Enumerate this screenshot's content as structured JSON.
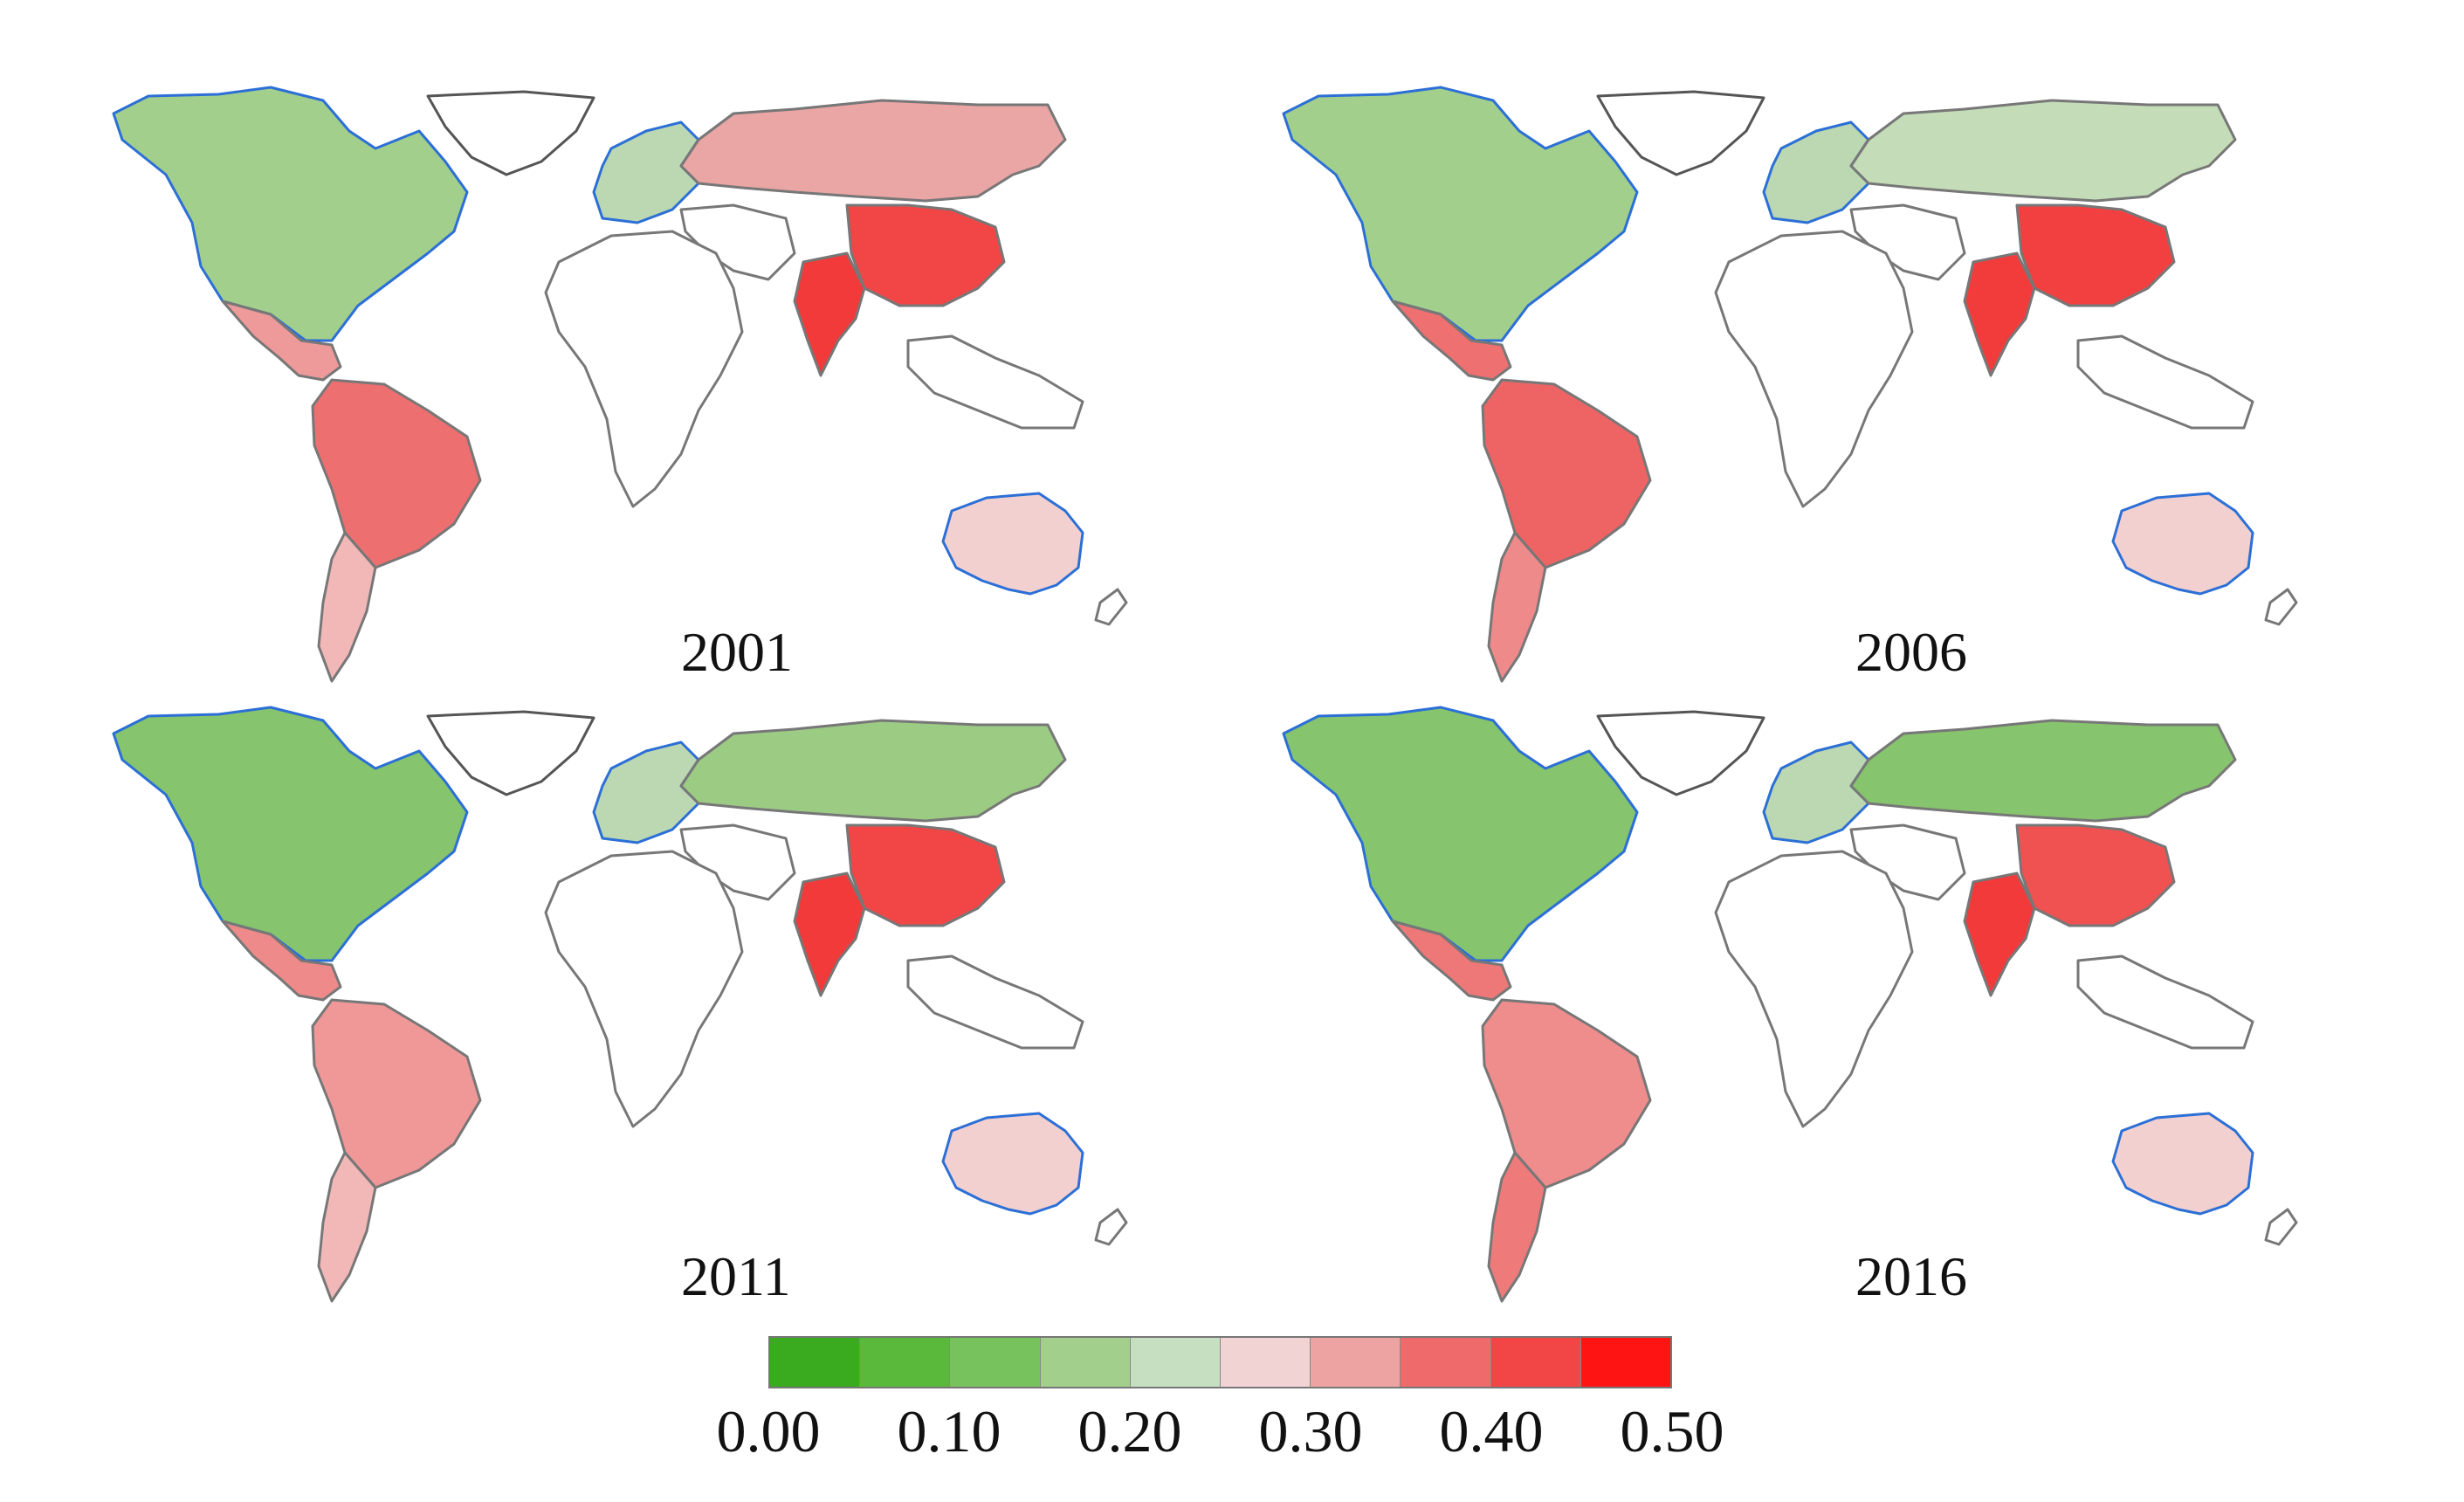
{
  "panels": [
    {
      "year": "2001",
      "fills": {
        "north_america": "#a3cf8c",
        "greenland": "#ffffff",
        "central_america": "#ef9a9a",
        "south_america": "#ee6f6f",
        "south_cone": "#f2b8b8",
        "europe": "#bcd8b2",
        "russia": "#eaa5a5",
        "china": "#f24646",
        "india": "#f23a3a",
        "australia": "#f2d0d0",
        "africa": "#ffffff",
        "middle_east": "#ffffff"
      }
    },
    {
      "year": "2006",
      "fills": {
        "north_america": "#a3cf8c",
        "greenland": "#ffffff",
        "central_america": "#ee7070",
        "south_america": "#ee6464",
        "south_cone": "#ef8a8a",
        "europe": "#bcd8b2",
        "russia": "#c4dcb8",
        "china": "#f24040",
        "india": "#f23c3c",
        "australia": "#f2d0d0",
        "africa": "#ffffff",
        "middle_east": "#ffffff"
      }
    },
    {
      "year": "2011",
      "fills": {
        "north_america": "#86c46d",
        "greenland": "#ffffff",
        "central_america": "#ef8a8a",
        "south_america": "#f09898",
        "south_cone": "#f2b8b8",
        "europe": "#bcd8b2",
        "russia": "#9ccb84",
        "china": "#f24646",
        "india": "#f23a3a",
        "australia": "#f2d0d0",
        "africa": "#ffffff",
        "middle_east": "#ffffff"
      }
    },
    {
      "year": "2016",
      "fills": {
        "north_america": "#86c46d",
        "greenland": "#ffffff",
        "central_america": "#ee7878",
        "south_america": "#ef8c8c",
        "south_cone": "#ef7a7a",
        "europe": "#bcd8b2",
        "russia": "#86c46d",
        "china": "#f05252",
        "india": "#f23a3a",
        "australia": "#f2d0d0",
        "africa": "#ffffff",
        "middle_east": "#ffffff"
      }
    }
  ],
  "legend": {
    "swatches": [
      "#3aaa1e",
      "#5ab83b",
      "#78c25d",
      "#a3cf8c",
      "#c6dfc0",
      "#f1d3d3",
      "#eea3a3",
      "#ef6b6b",
      "#f24646",
      "#ff1414"
    ],
    "ticks": [
      "0.00",
      "0.10",
      "0.20",
      "0.30",
      "0.40",
      "0.50"
    ],
    "range": [
      0,
      0.5
    ]
  }
}
